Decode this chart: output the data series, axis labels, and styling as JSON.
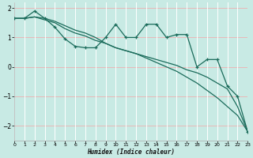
{
  "xlabel": "Humidex (Indice chaleur)",
  "bg_color": "#c8eae4",
  "grid_h_color": "#e8b8b8",
  "grid_v_color": "#ffffff",
  "line_color": "#1a6b5a",
  "xlim": [
    0,
    23
  ],
  "ylim": [
    -2.5,
    2.2
  ],
  "xticks": [
    0,
    1,
    2,
    3,
    4,
    5,
    6,
    7,
    8,
    9,
    10,
    11,
    12,
    13,
    14,
    15,
    16,
    17,
    18,
    19,
    20,
    21,
    22,
    23
  ],
  "yticks": [
    -2,
    -1,
    0,
    1,
    2
  ],
  "line1_x": [
    0,
    1,
    2,
    3,
    4,
    5,
    6,
    7,
    8,
    9,
    10,
    11,
    12,
    13,
    14,
    15,
    16,
    17,
    18,
    19,
    20,
    21,
    22,
    23
  ],
  "line1_y": [
    1.65,
    1.65,
    1.9,
    1.65,
    1.35,
    0.95,
    0.7,
    0.65,
    0.65,
    1.0,
    1.45,
    1.0,
    1.0,
    1.45,
    1.45,
    1.0,
    1.1,
    1.1,
    0.0,
    0.25,
    0.25,
    -0.65,
    -1.0,
    -2.2
  ],
  "line2_x": [
    0,
    1,
    2,
    3,
    4,
    5,
    6,
    7,
    8,
    9,
    10,
    11,
    12,
    13,
    14,
    15,
    16,
    17,
    18,
    19,
    20,
    21,
    22,
    23
  ],
  "line2_y": [
    1.65,
    1.65,
    1.7,
    1.6,
    1.5,
    1.3,
    1.15,
    1.05,
    0.9,
    0.8,
    0.65,
    0.55,
    0.45,
    0.35,
    0.25,
    0.15,
    0.05,
    -0.1,
    -0.2,
    -0.35,
    -0.55,
    -0.75,
    -1.35,
    -2.2
  ],
  "line3_x": [
    0,
    1,
    2,
    3,
    4,
    5,
    6,
    7,
    8,
    9,
    10,
    11,
    12,
    13,
    14,
    15,
    16,
    17,
    18,
    19,
    20,
    21,
    22,
    23
  ],
  "line3_y": [
    1.65,
    1.65,
    1.7,
    1.65,
    1.55,
    1.4,
    1.25,
    1.15,
    1.0,
    0.8,
    0.65,
    0.55,
    0.45,
    0.3,
    0.15,
    0.0,
    -0.15,
    -0.35,
    -0.55,
    -0.8,
    -1.05,
    -1.35,
    -1.65,
    -2.2
  ]
}
